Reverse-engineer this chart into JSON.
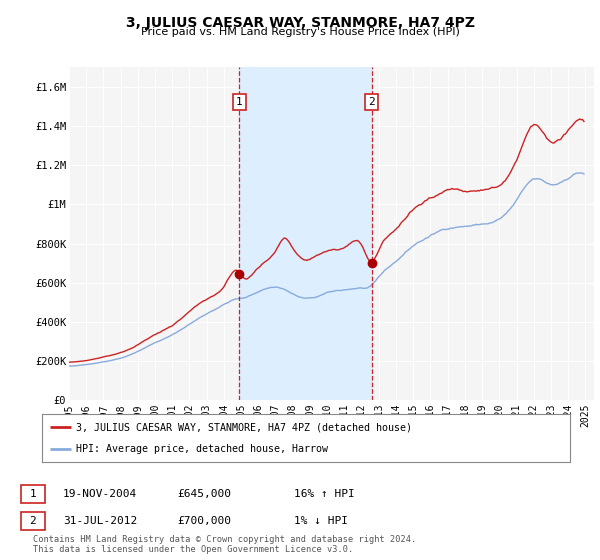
{
  "title": "3, JULIUS CAESAR WAY, STANMORE, HA7 4PZ",
  "subtitle": "Price paid vs. HM Land Registry's House Price Index (HPI)",
  "background_color": "#ffffff",
  "plot_bg_color": "#f5f5f5",
  "grid_color": "#ffffff",
  "ylim": [
    0,
    1700000
  ],
  "yticks": [
    0,
    200000,
    400000,
    600000,
    800000,
    1000000,
    1200000,
    1400000,
    1600000
  ],
  "ytick_labels": [
    "£0",
    "£200K",
    "£400K",
    "£600K",
    "£800K",
    "£1M",
    "£1.2M",
    "£1.4M",
    "£1.6M"
  ],
  "purchase1_date": 2004.9,
  "purchase1_price": 645000,
  "purchase2_date": 2012.58,
  "purchase2_price": 700000,
  "vline_color": "#cc0000",
  "vspan_color": "#ddeeff",
  "red_line_color": "#cc2222",
  "blue_line_color": "#88aadd",
  "marker_color": "#aa0000",
  "footnote": "Contains HM Land Registry data © Crown copyright and database right 2024.\nThis data is licensed under the Open Government Licence v3.0.",
  "legend1_label": "3, JULIUS CAESAR WAY, STANMORE, HA7 4PZ (detached house)",
  "legend2_label": "HPI: Average price, detached house, Harrow",
  "ann1_date": "19-NOV-2004",
  "ann1_price": "£645,000",
  "ann1_hpi": "16% ↑ HPI",
  "ann2_date": "31-JUL-2012",
  "ann2_price": "£700,000",
  "ann2_hpi": "1% ↓ HPI",
  "xmin": 1995,
  "xmax": 2025.5
}
